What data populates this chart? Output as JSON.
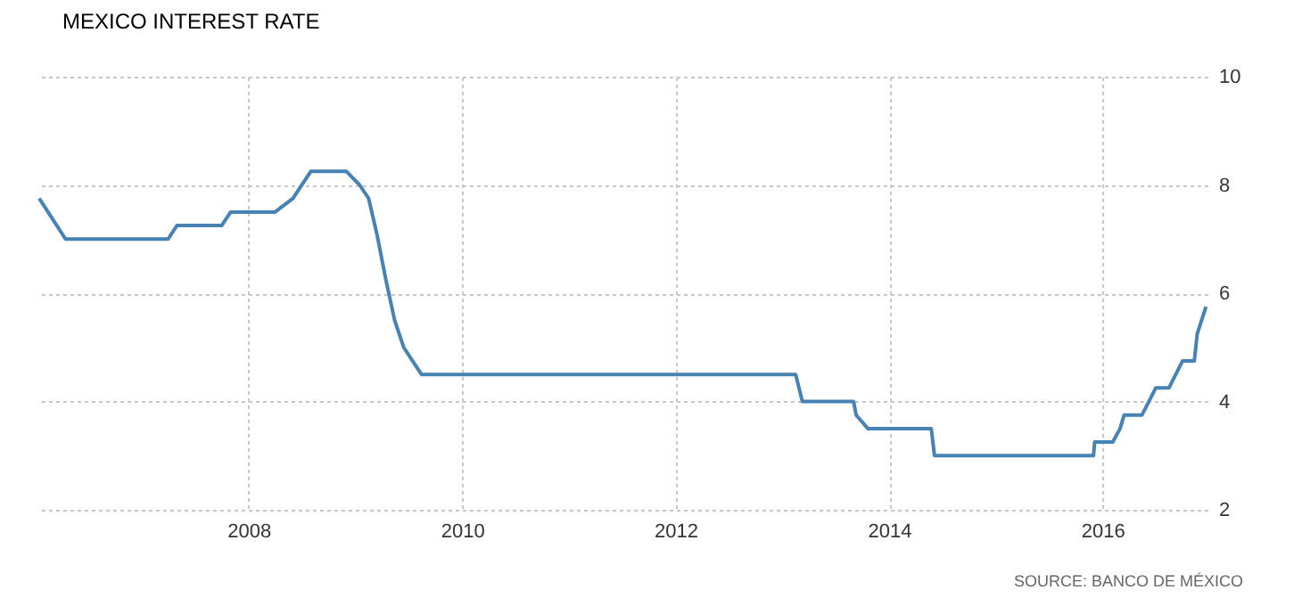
{
  "chart_data": {
    "type": "line",
    "title": "MEXICO INTEREST RATE",
    "x": [
      "2006-01-15",
      "2006-04-15",
      "2007-04-01",
      "2007-05-01",
      "2007-10-01",
      "2007-11-01",
      "2008-04-01",
      "2008-06-01",
      "2008-08-01",
      "2008-12-01",
      "2009-01-15",
      "2009-02-15",
      "2009-03-15",
      "2009-04-15",
      "2009-05-15",
      "2009-06-15",
      "2009-07-15",
      "2009-08-15",
      "2013-02-15",
      "2013-03-10",
      "2013-09-01",
      "2013-09-10",
      "2013-10-20",
      "2014-05-25",
      "2014-06-05",
      "2015-12-01",
      "2015-12-05",
      "2016-02-05",
      "2016-03-01",
      "2016-03-15",
      "2016-05-15",
      "2016-07-01",
      "2016-08-15",
      "2016-10-01",
      "2016-11-10",
      "2016-11-20",
      "2016-12-20"
    ],
    "series": [
      {
        "color": "#4682b4",
        "values": [
          7.75,
          7.0,
          7.0,
          7.25,
          7.25,
          7.5,
          7.5,
          7.75,
          8.25,
          8.25,
          8.0,
          7.75,
          7.1,
          6.25,
          5.5,
          5.0,
          4.75,
          4.5,
          4.5,
          4.0,
          4.0,
          3.75,
          3.5,
          3.5,
          3.0,
          3.0,
          3.25,
          3.25,
          3.5,
          3.75,
          3.75,
          4.25,
          4.25,
          4.75,
          4.75,
          5.25,
          5.75
        ]
      }
    ],
    "xlim": [
      "2006-01-15",
      "2016-12-25"
    ],
    "xticks": [
      "2008",
      "2010",
      "2012",
      "2014",
      "2016"
    ],
    "ylim": [
      2,
      10
    ],
    "yticks": [
      2,
      4,
      6,
      8,
      10
    ],
    "grid": true,
    "line_style": "solid",
    "annotations": [
      "SOURCE: BANCO DE MÉXICO"
    ]
  }
}
